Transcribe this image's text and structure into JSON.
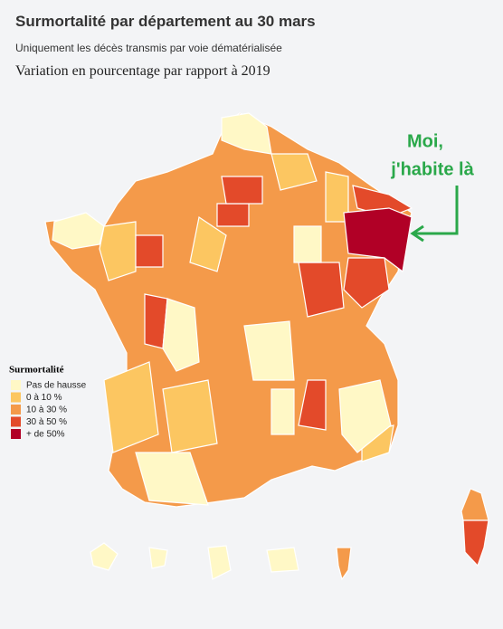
{
  "header": {
    "title": "Surmortalité par département au 30 mars",
    "subtitle": "Uniquement les décès transmis par voie dématérialisée",
    "heading": "Variation en pourcentage par rapport à 2019"
  },
  "legend": {
    "title": "Surmortalité",
    "items": [
      {
        "label": "Pas de hausse",
        "color": "#fff8c6"
      },
      {
        "label": "0 à 10 %",
        "color": "#fcc661"
      },
      {
        "label": "10 à 30 %",
        "color": "#f49a4a"
      },
      {
        "label": "30 à 50 %",
        "color": "#e34a2a"
      },
      {
        "label": "+ de 50%",
        "color": "#b10026"
      }
    ]
  },
  "annotation": {
    "lines": [
      "Moi,",
      "j'habite là"
    ],
    "color": "#2aa84a"
  }
}
